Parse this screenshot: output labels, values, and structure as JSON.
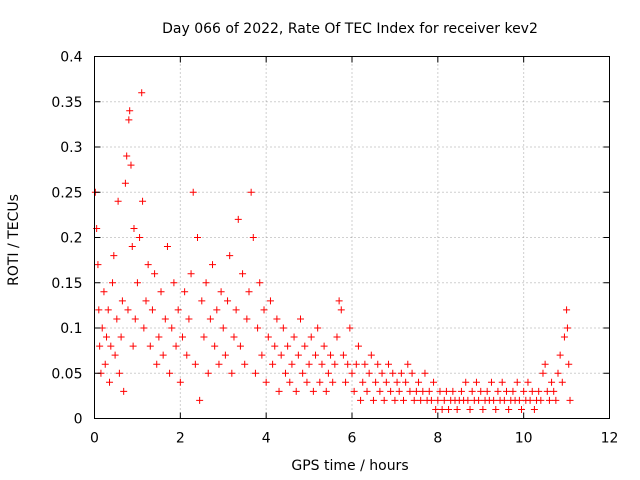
{
  "chart_data": {
    "type": "scatter",
    "title": "Day 066 of 2022, Rate Of TEC Index for receiver kev2",
    "xlabel": "GPS time / hours",
    "ylabel": "ROTI / TECUs",
    "xlim": [
      0,
      12
    ],
    "ylim": [
      0,
      0.4
    ],
    "xticks": [
      0,
      2,
      4,
      6,
      8,
      10,
      12
    ],
    "xtick_labels": [
      "0",
      "2",
      "4",
      "6",
      "8",
      "10",
      "12"
    ],
    "yticks": [
      0,
      0.05,
      0.1,
      0.15,
      0.2,
      0.25,
      0.3,
      0.35,
      0.4
    ],
    "ytick_labels": [
      "0",
      "0.05",
      "0.1",
      "0.15",
      "0.2",
      "0.25",
      "0.3",
      "0.35",
      "0.4"
    ],
    "grid": true,
    "marker": "+",
    "color": "#ff0000",
    "series": [
      {
        "name": "ROTI",
        "points": [
          [
            0.02,
            0.25
          ],
          [
            0.05,
            0.21
          ],
          [
            0.08,
            0.17
          ],
          [
            0.1,
            0.12
          ],
          [
            0.12,
            0.08
          ],
          [
            0.15,
            0.05
          ],
          [
            0.18,
            0.1
          ],
          [
            0.22,
            0.14
          ],
          [
            0.25,
            0.06
          ],
          [
            0.28,
            0.09
          ],
          [
            0.32,
            0.12
          ],
          [
            0.35,
            0.04
          ],
          [
            0.38,
            0.08
          ],
          [
            0.42,
            0.15
          ],
          [
            0.45,
            0.18
          ],
          [
            0.48,
            0.07
          ],
          [
            0.52,
            0.11
          ],
          [
            0.55,
            0.24
          ],
          [
            0.58,
            0.05
          ],
          [
            0.62,
            0.09
          ],
          [
            0.65,
            0.13
          ],
          [
            0.68,
            0.03
          ],
          [
            0.72,
            0.26
          ],
          [
            0.75,
            0.29
          ],
          [
            0.78,
            0.12
          ],
          [
            0.8,
            0.33
          ],
          [
            0.82,
            0.34
          ],
          [
            0.85,
            0.28
          ],
          [
            0.88,
            0.19
          ],
          [
            0.9,
            0.08
          ],
          [
            0.92,
            0.21
          ],
          [
            0.95,
            0.11
          ],
          [
            1.0,
            0.15
          ],
          [
            1.05,
            0.2
          ],
          [
            1.1,
            0.36
          ],
          [
            1.12,
            0.24
          ],
          [
            1.15,
            0.1
          ],
          [
            1.2,
            0.13
          ],
          [
            1.25,
            0.17
          ],
          [
            1.3,
            0.08
          ],
          [
            1.35,
            0.12
          ],
          [
            1.4,
            0.16
          ],
          [
            1.45,
            0.06
          ],
          [
            1.5,
            0.09
          ],
          [
            1.55,
            0.14
          ],
          [
            1.6,
            0.07
          ],
          [
            1.65,
            0.11
          ],
          [
            1.7,
            0.19
          ],
          [
            1.75,
            0.05
          ],
          [
            1.8,
            0.1
          ],
          [
            1.85,
            0.15
          ],
          [
            1.9,
            0.08
          ],
          [
            1.95,
            0.12
          ],
          [
            2.0,
            0.04
          ],
          [
            2.05,
            0.09
          ],
          [
            2.1,
            0.14
          ],
          [
            2.15,
            0.07
          ],
          [
            2.2,
            0.11
          ],
          [
            2.25,
            0.16
          ],
          [
            2.3,
            0.25
          ],
          [
            2.35,
            0.06
          ],
          [
            2.4,
            0.2
          ],
          [
            2.45,
            0.02
          ],
          [
            2.5,
            0.13
          ],
          [
            2.55,
            0.09
          ],
          [
            2.6,
            0.15
          ],
          [
            2.65,
            0.05
          ],
          [
            2.7,
            0.11
          ],
          [
            2.75,
            0.17
          ],
          [
            2.8,
            0.08
          ],
          [
            2.85,
            0.12
          ],
          [
            2.9,
            0.06
          ],
          [
            2.95,
            0.14
          ],
          [
            3.0,
            0.1
          ],
          [
            3.05,
            0.07
          ],
          [
            3.1,
            0.13
          ],
          [
            3.15,
            0.18
          ],
          [
            3.2,
            0.05
          ],
          [
            3.25,
            0.09
          ],
          [
            3.3,
            0.12
          ],
          [
            3.35,
            0.22
          ],
          [
            3.4,
            0.08
          ],
          [
            3.45,
            0.16
          ],
          [
            3.5,
            0.06
          ],
          [
            3.55,
            0.11
          ],
          [
            3.6,
            0.14
          ],
          [
            3.65,
            0.25
          ],
          [
            3.7,
            0.2
          ],
          [
            3.75,
            0.05
          ],
          [
            3.8,
            0.1
          ],
          [
            3.85,
            0.15
          ],
          [
            3.9,
            0.07
          ],
          [
            3.95,
            0.12
          ],
          [
            4.0,
            0.04
          ],
          [
            4.05,
            0.09
          ],
          [
            4.1,
            0.13
          ],
          [
            4.15,
            0.06
          ],
          [
            4.2,
            0.08
          ],
          [
            4.25,
            0.11
          ],
          [
            4.3,
            0.03
          ],
          [
            4.35,
            0.07
          ],
          [
            4.4,
            0.1
          ],
          [
            4.45,
            0.05
          ],
          [
            4.5,
            0.08
          ],
          [
            4.55,
            0.04
          ],
          [
            4.6,
            0.06
          ],
          [
            4.65,
            0.09
          ],
          [
            4.7,
            0.03
          ],
          [
            4.75,
            0.07
          ],
          [
            4.8,
            0.11
          ],
          [
            4.85,
            0.05
          ],
          [
            4.9,
            0.08
          ],
          [
            4.95,
            0.04
          ],
          [
            5.0,
            0.06
          ],
          [
            5.05,
            0.09
          ],
          [
            5.1,
            0.03
          ],
          [
            5.15,
            0.07
          ],
          [
            5.2,
            0.1
          ],
          [
            5.25,
            0.04
          ],
          [
            5.3,
            0.06
          ],
          [
            5.35,
            0.08
          ],
          [
            5.4,
            0.03
          ],
          [
            5.45,
            0.05
          ],
          [
            5.5,
            0.07
          ],
          [
            5.55,
            0.04
          ],
          [
            5.6,
            0.06
          ],
          [
            5.65,
            0.09
          ],
          [
            5.7,
            0.13
          ],
          [
            5.75,
            0.12
          ],
          [
            5.8,
            0.07
          ],
          [
            5.85,
            0.04
          ],
          [
            5.9,
            0.06
          ],
          [
            5.95,
            0.1
          ],
          [
            6.0,
            0.05
          ],
          [
            6.05,
            0.03
          ],
          [
            6.1,
            0.06
          ],
          [
            6.15,
            0.08
          ],
          [
            6.2,
            0.02
          ],
          [
            6.25,
            0.04
          ],
          [
            6.3,
            0.06
          ],
          [
            6.35,
            0.03
          ],
          [
            6.4,
            0.05
          ],
          [
            6.45,
            0.07
          ],
          [
            6.5,
            0.02
          ],
          [
            6.55,
            0.04
          ],
          [
            6.6,
            0.06
          ],
          [
            6.65,
            0.03
          ],
          [
            6.7,
            0.05
          ],
          [
            6.75,
            0.02
          ],
          [
            6.8,
            0.04
          ],
          [
            6.85,
            0.06
          ],
          [
            6.9,
            0.03
          ],
          [
            6.95,
            0.05
          ],
          [
            7.0,
            0.02
          ],
          [
            7.05,
            0.04
          ],
          [
            7.1,
            0.03
          ],
          [
            7.15,
            0.05
          ],
          [
            7.2,
            0.02
          ],
          [
            7.25,
            0.04
          ],
          [
            7.3,
            0.06
          ],
          [
            7.35,
            0.03
          ],
          [
            7.4,
            0.05
          ],
          [
            7.45,
            0.02
          ],
          [
            7.5,
            0.03
          ],
          [
            7.55,
            0.04
          ],
          [
            7.6,
            0.02
          ],
          [
            7.65,
            0.03
          ],
          [
            7.7,
            0.05
          ],
          [
            7.75,
            0.02
          ],
          [
            7.8,
            0.03
          ],
          [
            7.85,
            0.02
          ],
          [
            7.9,
            0.04
          ],
          [
            7.95,
            0.01
          ],
          [
            8.0,
            0.02
          ],
          [
            8.05,
            0.03
          ],
          [
            8.1,
            0.01
          ],
          [
            8.15,
            0.02
          ],
          [
            8.2,
            0.03
          ],
          [
            8.25,
            0.01
          ],
          [
            8.3,
            0.02
          ],
          [
            8.35,
            0.03
          ],
          [
            8.4,
            0.02
          ],
          [
            8.45,
            0.01
          ],
          [
            8.5,
            0.02
          ],
          [
            8.55,
            0.03
          ],
          [
            8.6,
            0.02
          ],
          [
            8.65,
            0.04
          ],
          [
            8.7,
            0.02
          ],
          [
            8.75,
            0.01
          ],
          [
            8.8,
            0.03
          ],
          [
            8.85,
            0.02
          ],
          [
            8.9,
            0.04
          ],
          [
            8.95,
            0.02
          ],
          [
            9.0,
            0.03
          ],
          [
            9.05,
            0.01
          ],
          [
            9.1,
            0.02
          ],
          [
            9.15,
            0.03
          ],
          [
            9.2,
            0.02
          ],
          [
            9.25,
            0.04
          ],
          [
            9.3,
            0.02
          ],
          [
            9.35,
            0.01
          ],
          [
            9.4,
            0.03
          ],
          [
            9.45,
            0.02
          ],
          [
            9.5,
            0.04
          ],
          [
            9.55,
            0.02
          ],
          [
            9.6,
            0.03
          ],
          [
            9.65,
            0.01
          ],
          [
            9.7,
            0.02
          ],
          [
            9.75,
            0.03
          ],
          [
            9.8,
            0.02
          ],
          [
            9.85,
            0.04
          ],
          [
            9.9,
            0.02
          ],
          [
            9.95,
            0.01
          ],
          [
            10.0,
            0.03
          ],
          [
            10.05,
            0.02
          ],
          [
            10.1,
            0.04
          ],
          [
            10.15,
            0.02
          ],
          [
            10.2,
            0.03
          ],
          [
            10.25,
            0.01
          ],
          [
            10.3,
            0.02
          ],
          [
            10.35,
            0.03
          ],
          [
            10.4,
            0.02
          ],
          [
            10.45,
            0.05
          ],
          [
            10.5,
            0.06
          ],
          [
            10.55,
            0.03
          ],
          [
            10.6,
            0.02
          ],
          [
            10.65,
            0.04
          ],
          [
            10.7,
            0.03
          ],
          [
            10.75,
            0.02
          ],
          [
            10.8,
            0.05
          ],
          [
            10.85,
            0.07
          ],
          [
            10.9,
            0.04
          ],
          [
            10.95,
            0.09
          ],
          [
            11.0,
            0.12
          ],
          [
            11.02,
            0.1
          ],
          [
            11.05,
            0.06
          ],
          [
            11.08,
            0.02
          ]
        ]
      }
    ]
  }
}
